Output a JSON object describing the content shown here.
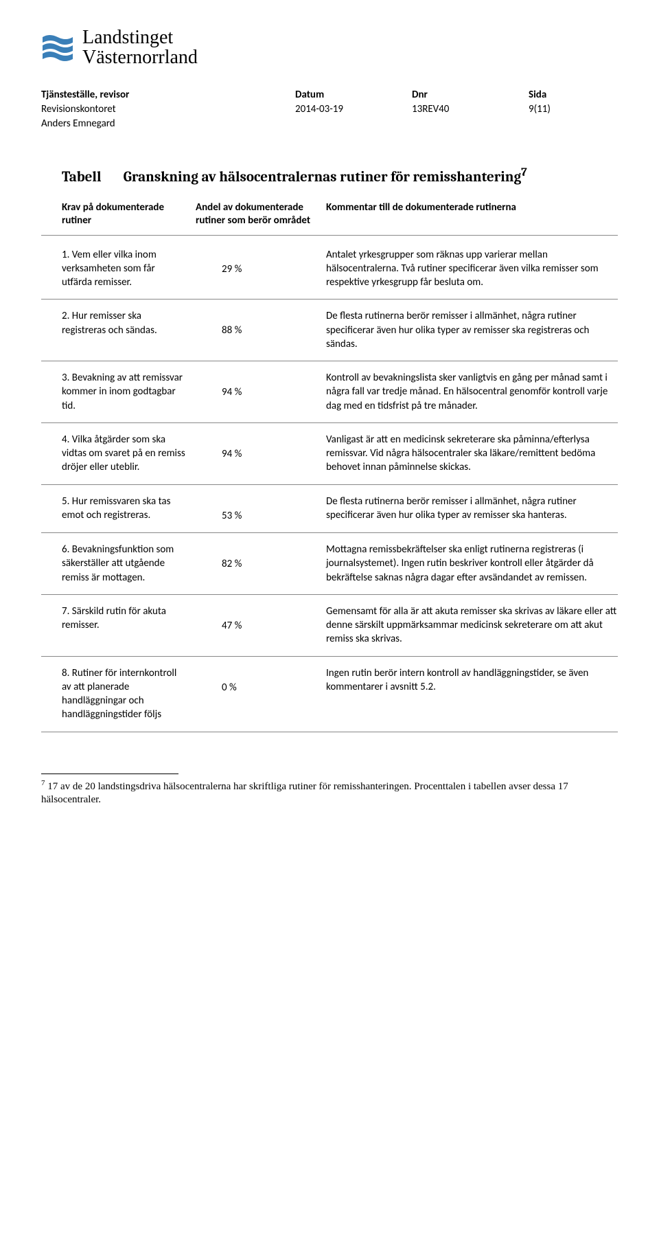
{
  "logo": {
    "line1": "Landstinget",
    "line2": "Västernorrland",
    "wave_color": "#3a7fb8"
  },
  "header": {
    "col1_label": "Tjänsteställe, revisor",
    "col2_label": "Datum",
    "col3_label": "Dnr",
    "col4_label": "Sida",
    "office": "Revisionskontoret",
    "date": "2014-03-19",
    "dnr": "13REV40",
    "page": "9(11)",
    "author": "Anders Emnegard"
  },
  "table": {
    "label": "Tabell",
    "title": "Granskning av hälsocentralernas rutiner för remisshantering",
    "title_sup": "7",
    "columns": {
      "c1": "Krav på dokumenterade rutiner",
      "c2": "Andel av dokumenterade rutiner som berör området",
      "c3": "Kommentar till de dokumenterade rutinerna"
    },
    "rows": [
      {
        "req": "1. Vem eller vilka inom verksamheten som får utfärda remisser.",
        "pct": "29 %",
        "comment": "Antalet yrkesgrupper som räknas upp varierar mellan hälsocentralerna. Två rutiner specificerar även vilka remisser som respektive yrkesgrupp får besluta om."
      },
      {
        "req": "2. Hur remisser ska registreras och sändas.",
        "pct": "88 %",
        "comment": "De flesta rutinerna berör remisser i allmänhet, några rutiner specificerar även hur olika typer av remisser ska registreras och sändas."
      },
      {
        "req": "3. Bevakning av att remissvar kommer in inom godtagbar tid.",
        "pct": "94 %",
        "comment": "Kontroll av bevakningslista sker vanligtvis en gång per månad samt i några fall var tredje månad. En hälsocentral genomför kontroll varje dag med en tidsfrist på tre månader."
      },
      {
        "req": "4. Vilka åtgärder som ska vidtas om svaret på en remiss dröjer eller uteblir.",
        "pct": "94 %",
        "comment": "Vanligast är att en medicinsk sekreterare ska påminna/efterlysa remissvar. Vid några hälsocentraler ska läkare/remittent bedöma behovet innan påminnelse skickas."
      },
      {
        "req": "5. Hur remissvaren ska tas emot och registreras.",
        "pct": "53 %",
        "comment": "De flesta rutinerna berör remisser i allmänhet, några rutiner specificerar även hur olika typer av remisser ska hanteras."
      },
      {
        "req": "6. Bevakningsfunktion som säkerställer att utgående remiss är mottagen.",
        "pct": "82 %",
        "comment": "Mottagna remissbekräftelser ska enligt rutinerna registreras (i journalsystemet). Ingen rutin beskriver kontroll eller åtgärder då bekräftelse saknas några dagar efter avsändandet av remissen."
      },
      {
        "req": "7. Särskild rutin för akuta remisser.",
        "pct": "47 %",
        "comment": "Gemensamt för alla är att akuta remisser ska skrivas av läkare eller att denne särskilt uppmärksammar medicinsk sekreterare om att akut remiss ska skrivas."
      },
      {
        "req": "8. Rutiner för internkontroll av att planerade handläggningar och handläggningstider följs",
        "pct": "0 %",
        "comment": "Ingen rutin berör intern kontroll av handläggningstider, se även kommentarer i avsnitt 5.2."
      }
    ]
  },
  "footnote": {
    "marker": "7",
    "text": "17 av de 20 landstingsdriva hälsocentralerna har skriftliga rutiner för remisshanteringen. Procenttalen i tabellen avser dessa 17 hälsocentraler."
  }
}
